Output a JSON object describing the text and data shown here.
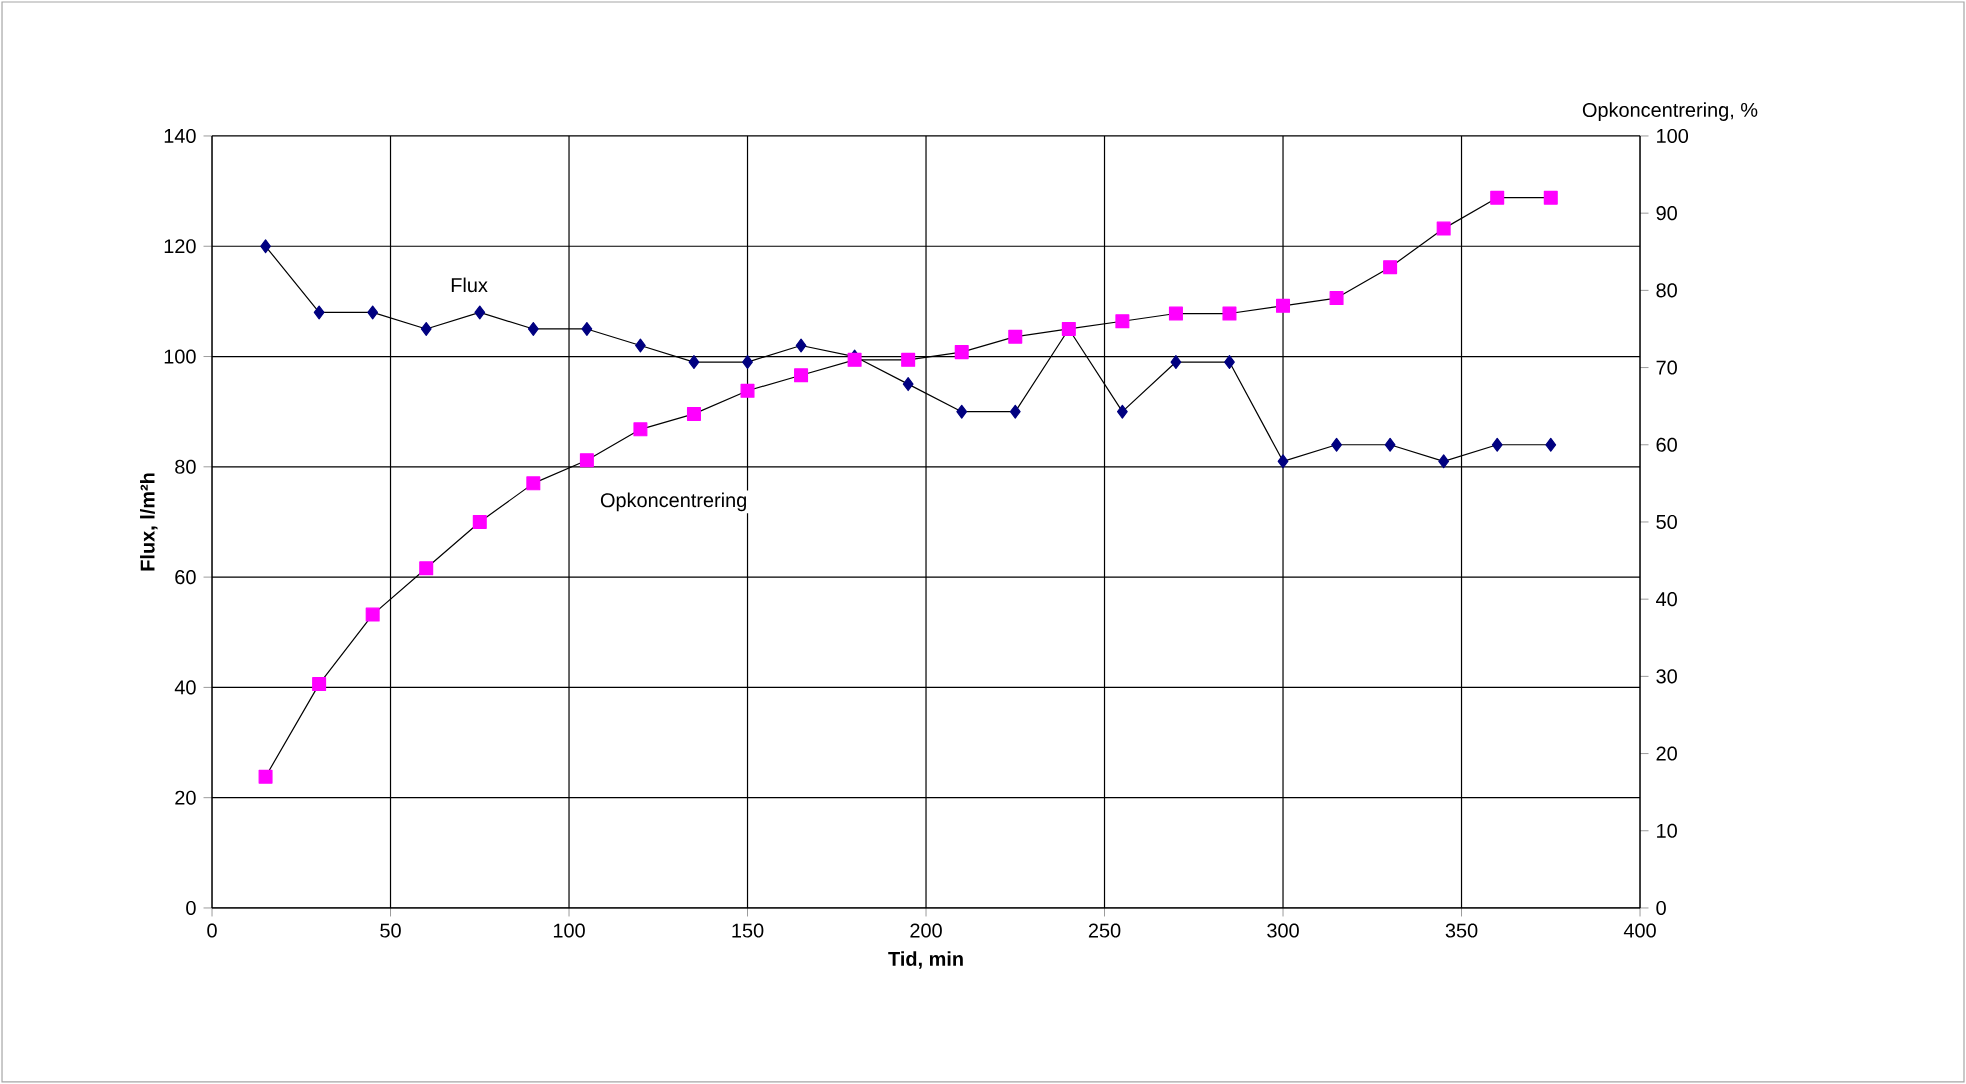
{
  "chart_data": {
    "type": "line",
    "xlabel": "Tid, min",
    "ylabel": "Flux, l/m²h",
    "y2label": "Opkoncentrering, %",
    "x": [
      15,
      30,
      45,
      60,
      75,
      90,
      105,
      120,
      135,
      150,
      165,
      180,
      195,
      210,
      225,
      240,
      255,
      270,
      285,
      300,
      315,
      330,
      345,
      360,
      375
    ],
    "series": [
      {
        "name": "Flux",
        "color": "#000080",
        "marker": "diamond",
        "values": [
          120,
          108,
          108,
          105,
          108,
          105,
          105,
          102,
          99,
          99,
          102,
          100,
          95,
          90,
          90,
          105,
          90,
          99,
          99,
          81,
          84,
          84,
          81,
          84,
          84
        ]
      },
      {
        "name": "Opkoncentrering",
        "color": "#ff00ff",
        "marker": "square",
        "axis": "y2",
        "values": [
          17,
          29,
          38,
          44,
          50,
          55,
          58,
          62,
          64,
          67,
          69,
          71,
          71,
          72,
          74,
          75,
          76,
          77,
          77,
          78,
          79,
          83,
          88,
          92,
          92
        ]
      }
    ],
    "xlim": [
      0,
      400
    ],
    "xticks": [
      0,
      50,
      100,
      150,
      200,
      250,
      300,
      350,
      400
    ],
    "ylim": [
      0,
      140
    ],
    "yticks": [
      0,
      20,
      40,
      60,
      80,
      100,
      120,
      140
    ],
    "y2lim": [
      0,
      100
    ],
    "y2ticks": [
      0,
      10,
      20,
      30,
      40,
      50,
      60,
      70,
      80,
      90,
      100
    ],
    "grid": true
  }
}
